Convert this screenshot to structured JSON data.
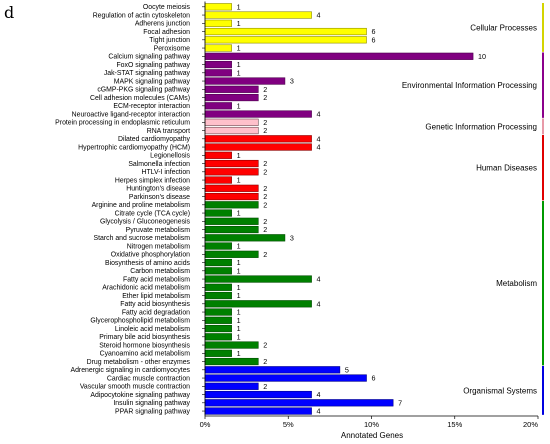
{
  "panel_letter": "d",
  "chart_data": {
    "type": "bar",
    "orientation": "horizontal",
    "xlabel": "Annotated Genes",
    "ylabel": "",
    "xlim": [
      0,
      20
    ],
    "x_ticks": [
      0,
      5,
      10,
      15,
      20
    ],
    "x_tick_labels": [
      "0%",
      "5%",
      "10%",
      "15%",
      "20%"
    ],
    "categories": [
      "Oocyte meiosis",
      "Regulation of actin cytoskeleton",
      "Adherens junction",
      "Focal adhesion",
      "Tight junction",
      "Peroxisome",
      "Calcium signaling pathway",
      "FoxO signaling pathway",
      "Jak-STAT signaling pathway",
      "MAPK signaling pathway",
      "cGMP-PKG signaling pathway",
      "Cell adhesion molecules (CAMs)",
      "ECM-receptor interaction",
      "Neuroactive ligand-receptor interaction",
      "Protein processing in endoplasmic reticulum",
      "RNA transport",
      "Dilated cardiomyopathy",
      "Hypertrophic cardiomyopathy (HCM)",
      "Legionellosis",
      "Salmonella infection",
      "HTLV-I infection",
      "Herpes simplex infection",
      "Huntington's disease",
      "Parkinson's disease",
      "Arginine and proline metabolism",
      "Citrate cycle (TCA cycle)",
      "Glycolysis / Gluconeogenesis",
      "Pyruvate metabolism",
      "Starch and sucrose metabolism",
      "Nitrogen metabolism",
      "Oxidative phosphorylation",
      "Biosynthesis of amino acids",
      "Carbon metabolism",
      "Fatty acid metabolism",
      "Arachidonic acid metabolism",
      "Ether lipid metabolism",
      "Fatty acid biosynthesis",
      "Fatty acid degradation",
      "Glycerophospholipid metabolism",
      "Linoleic acid metabolism",
      "Primary bile acid biosynthesis",
      "Steroid hormone biosynthesis",
      "Cyanoamino acid metabolism",
      "Drug metabolism - other enzymes",
      "Adrenergic signaling in cardiomyocytes",
      "Cardiac muscle contraction",
      "Vascular smooth muscle contraction",
      "Adipocytokine signaling pathway",
      "Insulin signaling pathway",
      "PPAR signaling pathway"
    ],
    "counts": [
      1,
      4,
      1,
      6,
      6,
      1,
      10,
      1,
      1,
      3,
      2,
      2,
      1,
      4,
      2,
      2,
      4,
      4,
      1,
      2,
      2,
      1,
      2,
      2,
      2,
      1,
      2,
      2,
      3,
      1,
      2,
      1,
      1,
      4,
      1,
      1,
      4,
      1,
      1,
      1,
      1,
      2,
      1,
      2,
      5,
      6,
      2,
      4,
      7,
      4
    ],
    "percent": [
      1.6,
      6.4,
      1.6,
      9.7,
      9.7,
      1.6,
      16.1,
      1.6,
      1.6,
      4.8,
      3.2,
      3.2,
      1.6,
      6.4,
      3.2,
      3.2,
      6.4,
      6.4,
      1.6,
      3.2,
      3.2,
      1.6,
      3.2,
      3.2,
      3.2,
      1.6,
      3.2,
      3.2,
      4.8,
      1.6,
      3.2,
      1.6,
      1.6,
      6.4,
      1.6,
      1.6,
      6.4,
      1.6,
      1.6,
      1.6,
      1.6,
      3.2,
      1.6,
      3.2,
      8.1,
      9.7,
      3.2,
      6.4,
      11.3,
      6.4
    ],
    "groups": [
      {
        "name": "Cellular Processes",
        "start": 0,
        "end": 5,
        "fill": "#ffff00",
        "stroke": "#8c8c00",
        "bracket": "#d4d400"
      },
      {
        "name": "Environmental Information Processing",
        "start": 6,
        "end": 13,
        "fill": "#800080",
        "stroke": "#4d004d",
        "bracket": "#8b008b"
      },
      {
        "name": "Genetic Information Processing",
        "start": 14,
        "end": 15,
        "fill": "#ffc0cb",
        "stroke": "#6b4a50",
        "bracket": "#e89aa8"
      },
      {
        "name": "Human Diseases",
        "start": 16,
        "end": 23,
        "fill": "#ff0000",
        "stroke": "#8b0000",
        "bracket": "#e00000"
      },
      {
        "name": "Metabolism",
        "start": 24,
        "end": 43,
        "fill": "#008000",
        "stroke": "#004d00",
        "bracket": "#009900"
      },
      {
        "name": "Organismal Systems",
        "start": 44,
        "end": 49,
        "fill": "#0000ff",
        "stroke": "#00008b",
        "bracket": "#0000e0"
      }
    ]
  }
}
